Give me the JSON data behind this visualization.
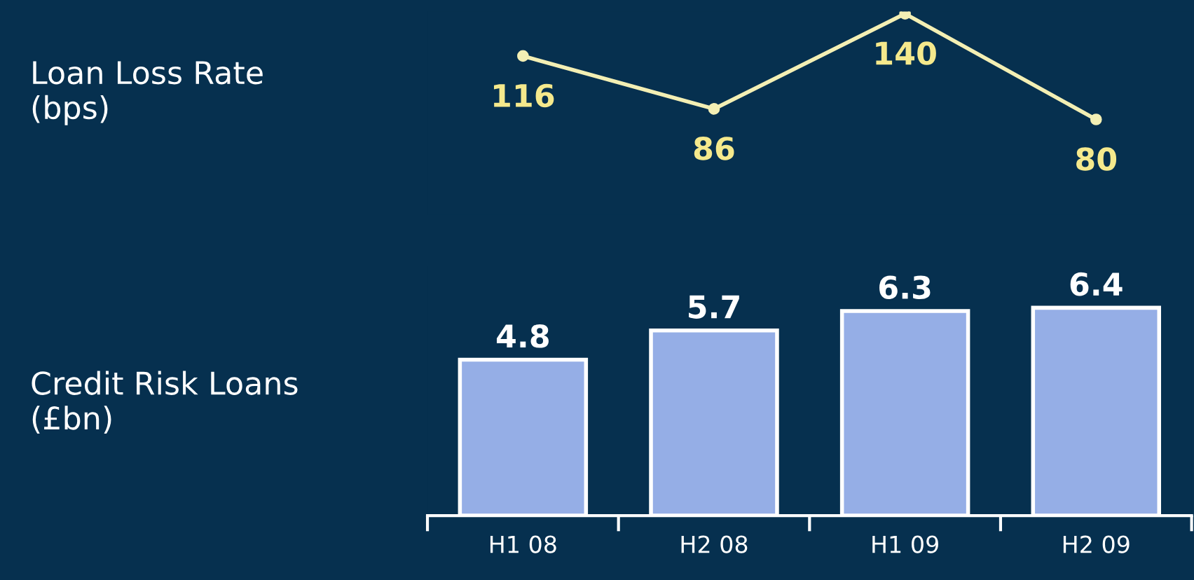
{
  "chart_data": [
    {
      "type": "line",
      "ylabel": "Loan Loss Rate\n(bps)",
      "categories": [
        null,
        null,
        null,
        null
      ],
      "values": [
        116,
        86,
        140,
        80
      ],
      "color": "#f3efb4",
      "data_labels": true,
      "marker": "circle",
      "line_style": "solid",
      "tick_labels": false
    },
    {
      "type": "bar",
      "ylabel": "Credit Risk Loans\n(£bn)",
      "categories": [
        "H1 08",
        "H2 08",
        "H1 09",
        "H2 09"
      ],
      "values": [
        4.8,
        5.7,
        6.3,
        6.4
      ],
      "color": "#95aee6",
      "data_labels": true,
      "tick_labels": "x"
    }
  ]
}
